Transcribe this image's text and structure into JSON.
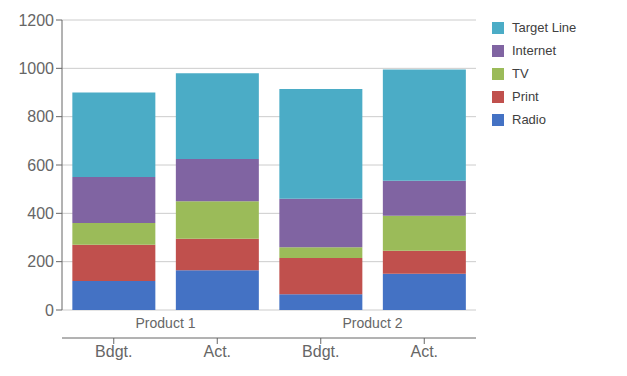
{
  "chart_data": {
    "type": "bar",
    "stacked": true,
    "categories": [
      "Bdgt.",
      "Act.",
      "Bdgt.",
      "Act."
    ],
    "groups": [
      "Product 1",
      "Product 2"
    ],
    "series": [
      {
        "name": "Radio",
        "color": "#4472C4",
        "values": [
          120,
          165,
          65,
          150
        ]
      },
      {
        "name": "Print",
        "color": "#C0504D",
        "values": [
          150,
          130,
          150,
          95
        ]
      },
      {
        "name": "TV",
        "color": "#9BBB59",
        "values": [
          90,
          155,
          45,
          145
        ]
      },
      {
        "name": "Internet",
        "color": "#8064A2",
        "values": [
          190,
          175,
          200,
          145
        ]
      },
      {
        "name": "Target Line",
        "color": "#4BACC6",
        "values": [
          350,
          355,
          455,
          460
        ]
      }
    ],
    "ylim": [
      0,
      1200
    ],
    "yticks": [
      0,
      200,
      400,
      600,
      800,
      1000,
      1200
    ],
    "grid": true,
    "legend": "right"
  }
}
